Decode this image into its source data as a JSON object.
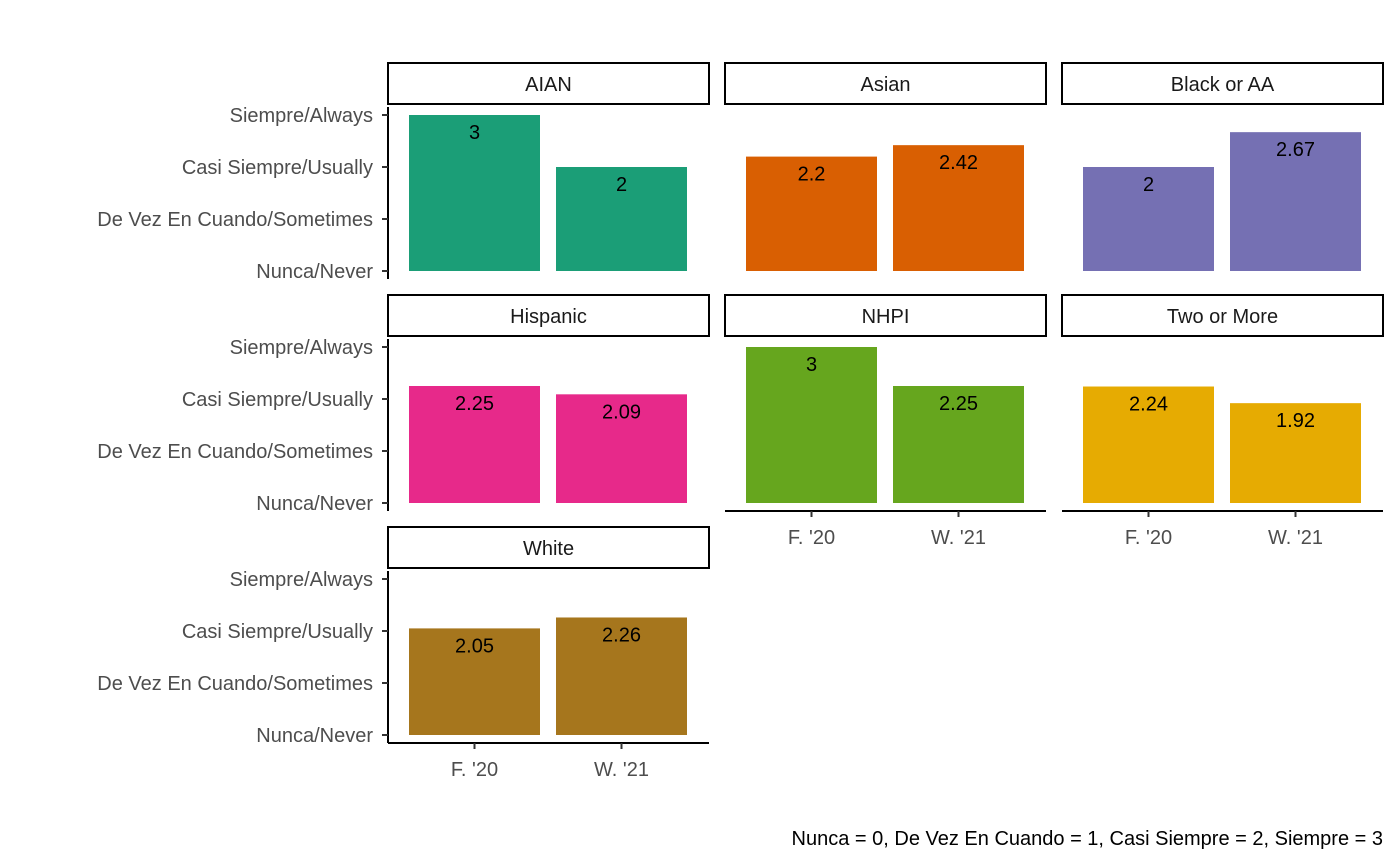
{
  "chart_data": {
    "type": "bar",
    "facet_by": "Race/Ethnicity",
    "categories": [
      "F. '20",
      "W. '21"
    ],
    "y_ticks": [
      {
        "value": 0,
        "label": "Nunca/Never"
      },
      {
        "value": 1,
        "label": "De Vez En Cuando/Sometimes"
      },
      {
        "value": 2,
        "label": "Casi Siempre/Usually"
      },
      {
        "value": 3,
        "label": "Siempre/Always"
      }
    ],
    "ylim": [
      0,
      3
    ],
    "grid": false,
    "legend": "none",
    "panels": [
      {
        "name": "AIAN",
        "color": "#1b9e77",
        "values": [
          3,
          2
        ],
        "labels": [
          "3",
          "2"
        ]
      },
      {
        "name": "Asian",
        "color": "#d95f02",
        "values": [
          2.2,
          2.42
        ],
        "labels": [
          "2.2",
          "2.42"
        ]
      },
      {
        "name": "Black or AA",
        "color": "#7570b3",
        "values": [
          2,
          2.67
        ],
        "labels": [
          "2",
          "2.67"
        ]
      },
      {
        "name": "Hispanic",
        "color": "#e7298a",
        "values": [
          2.25,
          2.09
        ],
        "labels": [
          "2.25",
          "2.09"
        ]
      },
      {
        "name": "NHPI",
        "color": "#66a61e",
        "values": [
          3,
          2.25
        ],
        "labels": [
          "3",
          "2.25"
        ]
      },
      {
        "name": "Two or More",
        "color": "#e6ab02",
        "values": [
          2.24,
          1.92
        ],
        "labels": [
          "2.24",
          "1.92"
        ]
      },
      {
        "name": "White",
        "color": "#a6761d",
        "values": [
          2.05,
          2.26
        ],
        "labels": [
          "2.05",
          "2.26"
        ]
      }
    ],
    "caption": "Nunca = 0, De Vez En Cuando = 1, Casi Siempre = 2, Siempre = 3"
  }
}
